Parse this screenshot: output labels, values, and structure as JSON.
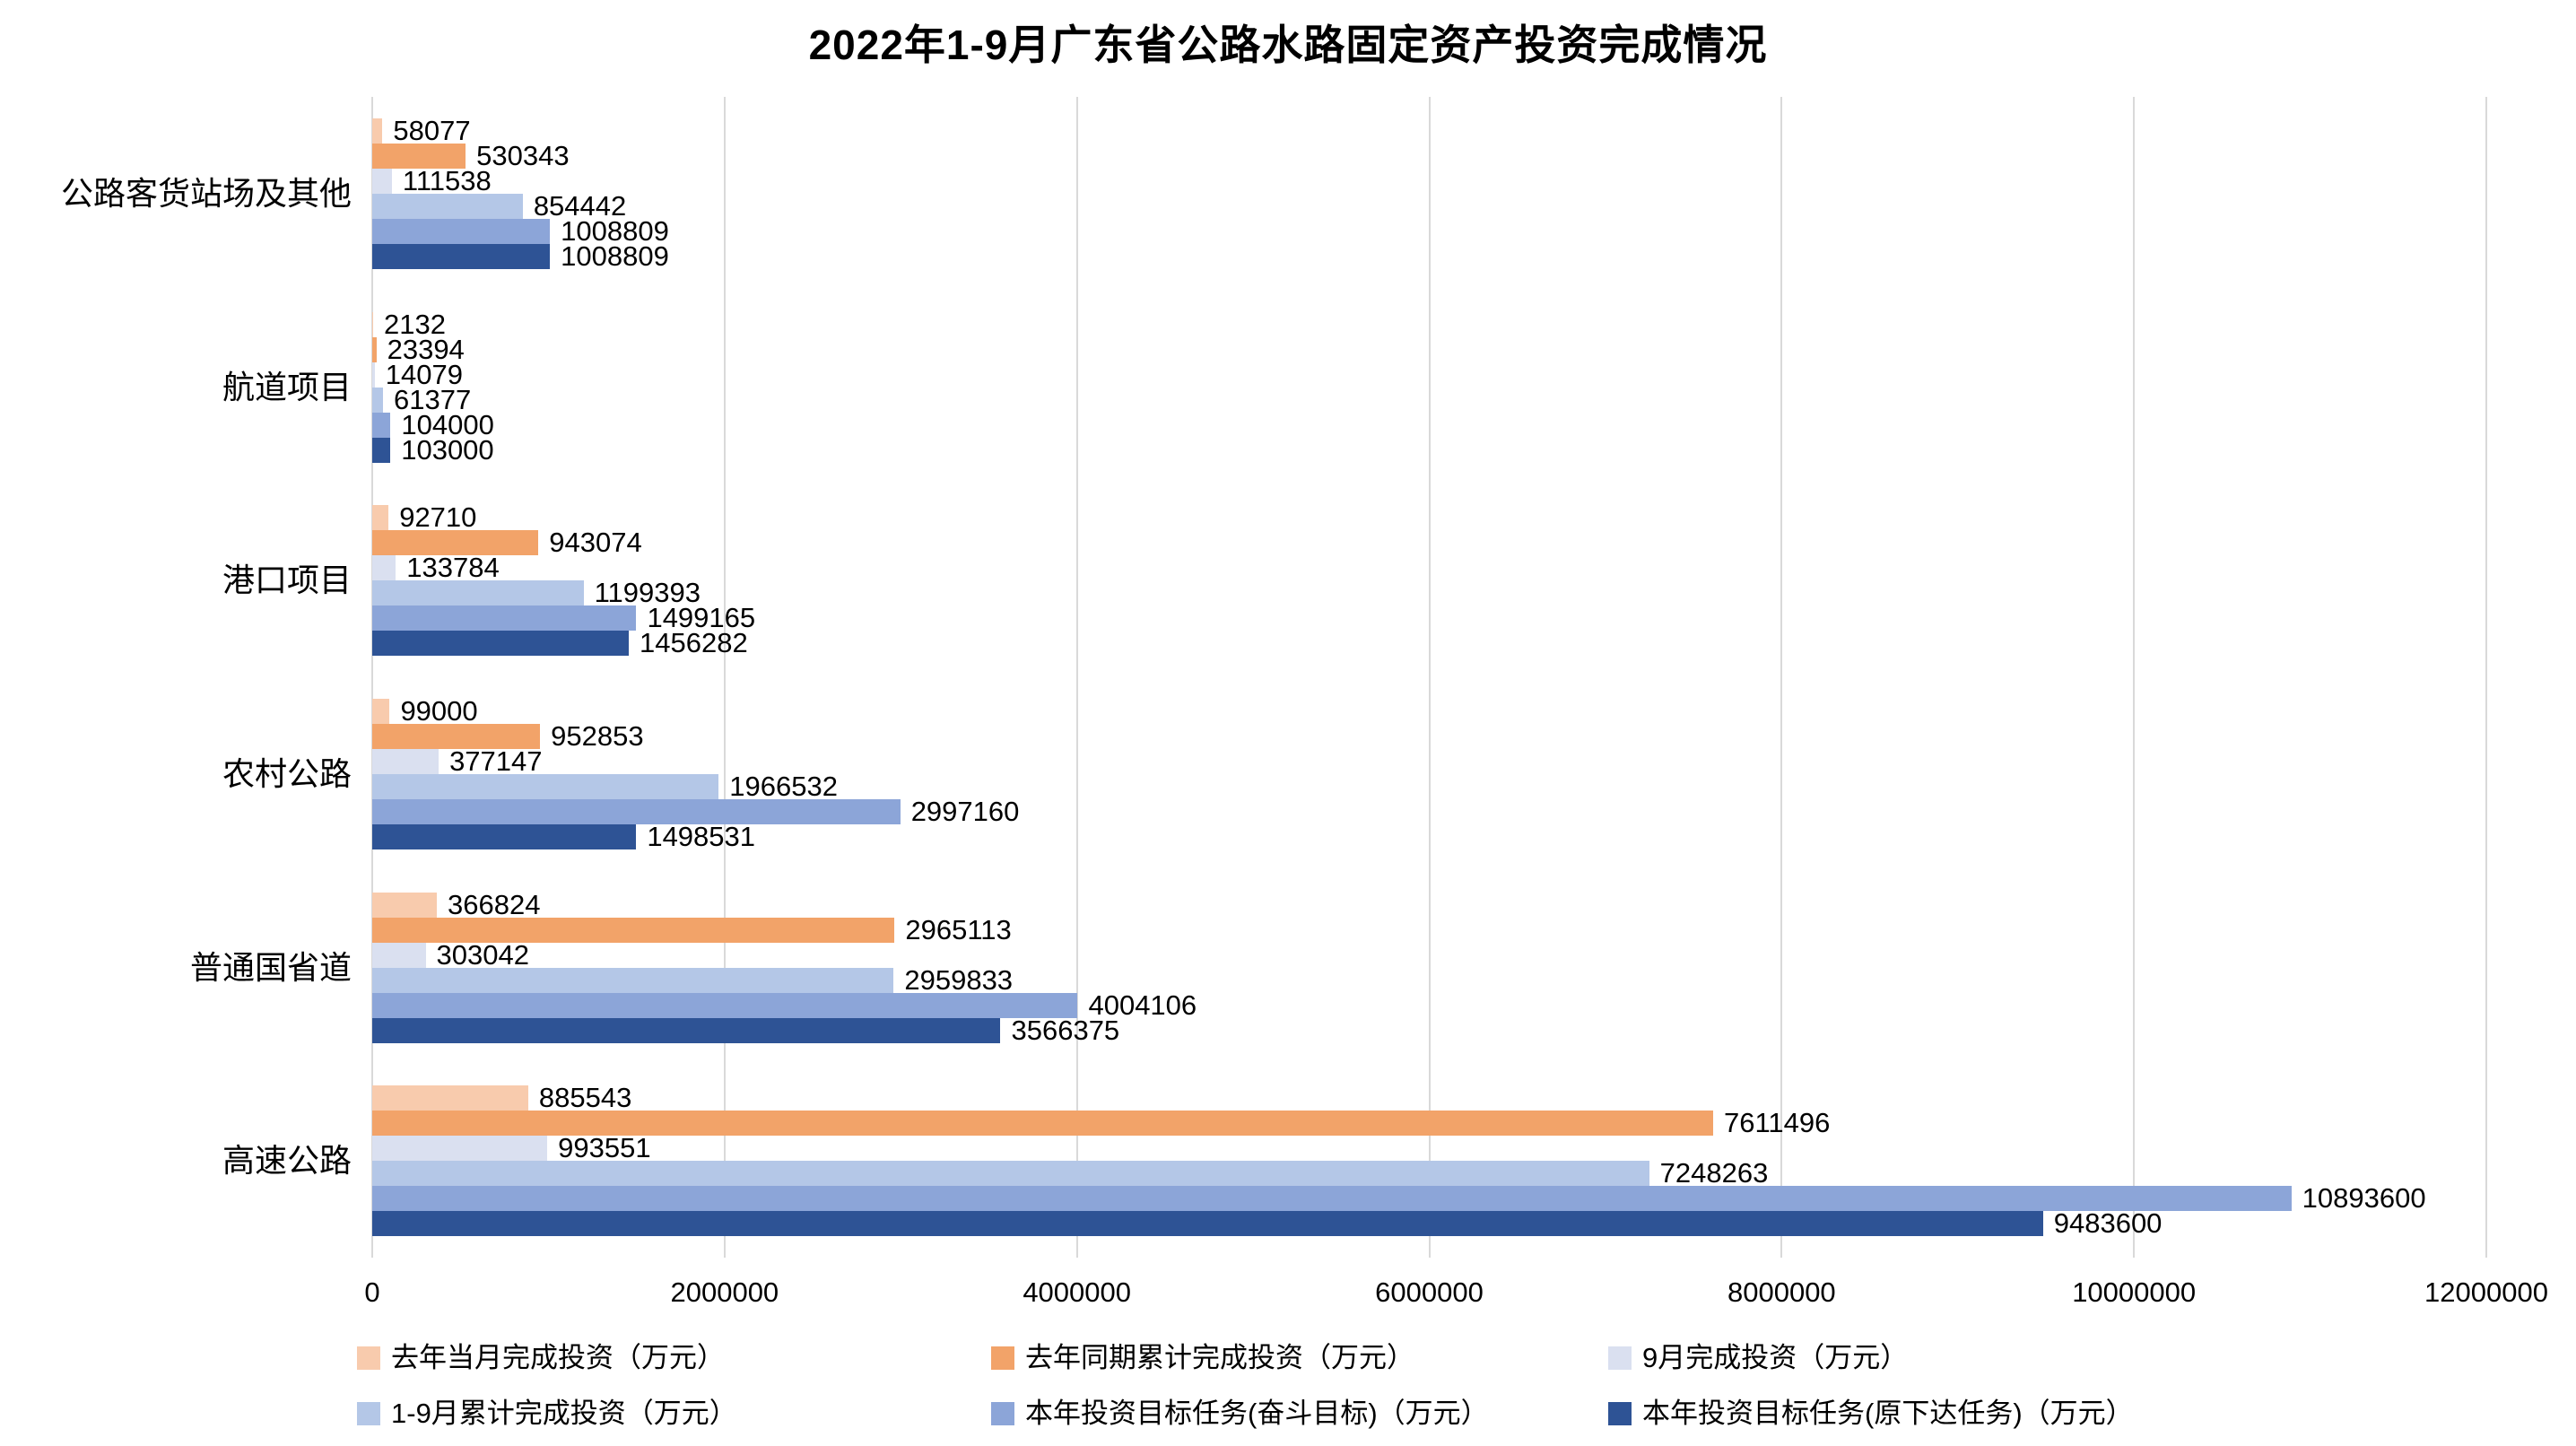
{
  "chart_data": {
    "type": "bar",
    "orientation": "horizontal",
    "title": "2022年1-9月广东省公路水路固定资产投资完成情况",
    "categories": [
      "公路客货站场及其他",
      "航道项目",
      "港口项目",
      "农村公路",
      "普通国省道",
      "高速公路"
    ],
    "series": [
      {
        "name": "去年当月完成投资（万元）",
        "color": "#F8CBAD",
        "values": [
          58077,
          2132,
          92710,
          99000,
          366824,
          885543
        ]
      },
      {
        "name": "去年同期累计完成投资（万元）",
        "color": "#F2A369",
        "values": [
          530343,
          23394,
          943074,
          952853,
          2965113,
          7611496
        ]
      },
      {
        "name": "9月完成投资（万元）",
        "color": "#DAE0F0",
        "values": [
          111538,
          14079,
          133784,
          377147,
          303042,
          993551
        ]
      },
      {
        "name": "1-9月累计完成投资（万元）",
        "color": "#B4C7E7",
        "values": [
          854442,
          61377,
          1199393,
          1966532,
          2959833,
          7248263
        ]
      },
      {
        "name": "本年投资目标任务(奋斗目标)（万元）",
        "color": "#8CA5D8",
        "values": [
          1008809,
          104000,
          1499165,
          2997160,
          4004106,
          10893600
        ]
      },
      {
        "name": "本年投资目标任务(原下达任务)（万元）",
        "color": "#2E5395",
        "values": [
          1008809,
          103000,
          1456282,
          1498531,
          3566375,
          9483600
        ]
      }
    ],
    "x_ticks": [
      "0",
      "2000000",
      "4000000",
      "6000000",
      "8000000",
      "10000000",
      "12000000"
    ],
    "xlim": [
      0,
      12000000
    ],
    "grid": true,
    "gridline_color": "#d9d9d9",
    "legend_position": "bottom"
  }
}
